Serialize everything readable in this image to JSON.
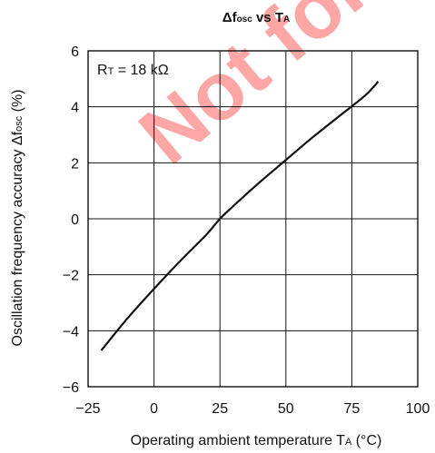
{
  "watermark": "Not for",
  "colors": {
    "line": "#111111",
    "grid": "#111111",
    "watermark": "#ff0000"
  },
  "chart_data": {
    "type": "line",
    "title": "Δfosc vs TA",
    "title_main": "Δf",
    "title_sub": "osc",
    "title_mid": " vs T",
    "title_sub2": "A",
    "xlabel_main": "Operating ambient temperature  T",
    "xlabel_sub": "A",
    "xlabel_unit": " (°C)",
    "ylabel_main": "Oscillation frequency accuracy  Δf",
    "ylabel_sub": "osc",
    "ylabel_unit": " (%)",
    "annotation_main": "R",
    "annotation_sub": "T",
    "annotation_rest": " = 18 kΩ",
    "xlim": [
      -25,
      100
    ],
    "ylim": [
      -6,
      6
    ],
    "xticks": [
      -25,
      0,
      25,
      50,
      75,
      100
    ],
    "xtick_labels": [
      "−25",
      "0",
      "25",
      "50",
      "75",
      "100"
    ],
    "yticks": [
      -6,
      -4,
      -2,
      0,
      2,
      4,
      6
    ],
    "ytick_labels": [
      "−6",
      "−4",
      "−2",
      "0",
      "2",
      "4",
      "6"
    ],
    "grid": true,
    "series": [
      {
        "x": [
          -20,
          -10,
          0,
          10,
          20,
          25,
          30,
          40,
          50,
          60,
          70,
          80,
          85
        ],
        "y": [
          -4.7,
          -3.55,
          -2.5,
          -1.5,
          -0.55,
          0.0,
          0.45,
          1.3,
          2.1,
          2.9,
          3.65,
          4.4,
          4.9
        ]
      }
    ]
  }
}
